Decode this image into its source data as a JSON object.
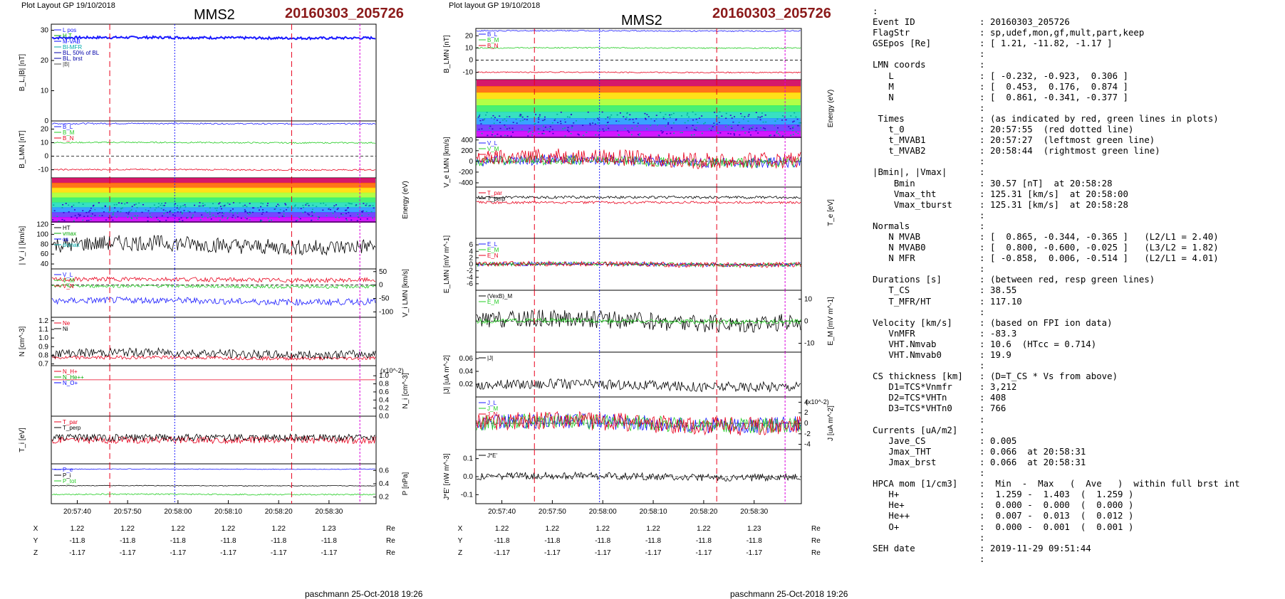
{
  "header": {
    "left_layout": "Plot Layout GP 19/10/2018",
    "mid_layout": "Plot layout GP 19/10/2018",
    "spacecraft": "MMS2",
    "event": "20160303_205726"
  },
  "footer": {
    "left": "paschmann 25-Oct-2018 19:26",
    "mid": "paschmann 25-Oct-2018 19:26"
  },
  "time_ticks": [
    "20:57:40",
    "20:57:50",
    "20:58:00",
    "20:58:10",
    "20:58:20",
    "20:58:30"
  ],
  "orbit": {
    "rows": [
      {
        "label": "X",
        "values": [
          "1.22",
          "1.22",
          "1.22",
          "1.22",
          "1.22",
          "1.23"
        ],
        "unit": "Re"
      },
      {
        "label": "Y",
        "values": [
          "-11.8",
          "-11.8",
          "-11.8",
          "-11.8",
          "-11.8",
          "-11.8"
        ],
        "unit": "Re"
      },
      {
        "label": "Z",
        "values": [
          "-1.17",
          "-1.17",
          "-1.17",
          "-1.17",
          "-1.17",
          "-1.17"
        ],
        "unit": "Re"
      }
    ]
  },
  "colors": {
    "red": "#e8001c",
    "blue": "#1a1aff",
    "green": "#22cc22",
    "black": "#000000",
    "cyan": "#00cccc",
    "magenta": "#dd00dd",
    "gray": "#999999",
    "darkred": "#8b1a1a"
  },
  "chart_data": [
    {
      "id": "L1",
      "type": "line",
      "ylabel": "B_L,|B| [nT]",
      "yticks": [
        "0",
        "10",
        "20",
        "30"
      ],
      "ylim": [
        0,
        32
      ],
      "legend": [
        "L pos",
        "H T",
        "M-VAB",
        "Bl-MFR",
        "BL, 50% of BL",
        "BL, brst",
        "|B|"
      ],
      "series": [
        {
          "name": "|B|",
          "color": "blue",
          "mean": 27.5,
          "amp": 0.4
        }
      ]
    },
    {
      "id": "L2",
      "type": "line",
      "ylabel": "B_LMN [nT]",
      "yticks": [
        "-10",
        "0",
        "10",
        "20"
      ],
      "ylim": [
        -16,
        26
      ],
      "legend": [
        "B_L",
        "B_M",
        "B_N"
      ],
      "series": [
        {
          "name": "B_L",
          "color": "blue",
          "mean": 24,
          "amp": 0.5
        },
        {
          "name": "B_M",
          "color": "green",
          "mean": 10,
          "amp": 0.5
        },
        {
          "name": "B_N",
          "color": "red",
          "mean": -10,
          "amp": 0.5
        }
      ]
    },
    {
      "id": "L3",
      "type": "heatmap",
      "ylabel": "Energy (eV)",
      "yticks": [
        "10^4",
        "10^3",
        "10^2"
      ]
    },
    {
      "id": "L4",
      "type": "line",
      "ylabel": "| V_i | [km/s]",
      "yticks": [
        "40",
        "60",
        "80",
        "100",
        "120"
      ],
      "ylim": [
        30,
        125
      ],
      "legend": [
        "HT",
        "vmax",
        "cs",
        "dvmax"
      ],
      "series": [
        {
          "name": "|Vi|",
          "color": "black",
          "mean": 78,
          "amp": 16
        }
      ]
    },
    {
      "id": "L5",
      "type": "line",
      "ylabel": "V_i LMN [km/s]",
      "yticks": [
        "-100",
        "-50",
        "0",
        "50"
      ],
      "ylim": [
        -120,
        60
      ],
      "legend": [
        "V_L",
        "V_M",
        "V_N"
      ],
      "series": [
        {
          "name": "V_L",
          "color": "blue",
          "mean": -60,
          "amp": 12
        },
        {
          "name": "V_M",
          "color": "green",
          "mean": -5,
          "amp": 6
        },
        {
          "name": "V_N",
          "color": "red",
          "mean": 20,
          "amp": 8
        }
      ]
    },
    {
      "id": "L6",
      "type": "line",
      "ylabel": "N [cm^-3]",
      "yticks": [
        "0.7",
        "0.8",
        "0.9",
        "1.0",
        "1.1",
        "1.2"
      ],
      "ylim": [
        0.68,
        1.24
      ],
      "legend": [
        "Ne",
        "Ni"
      ],
      "series": [
        {
          "name": "Ne",
          "color": "red",
          "mean": 0.77,
          "amp": 0.02
        },
        {
          "name": "Ni",
          "color": "black",
          "mean": 0.82,
          "amp": 0.05
        }
      ]
    },
    {
      "id": "L7",
      "type": "line",
      "ylabel": "N_i [cm^-3]",
      "yticks": [
        "0.0",
        "0.2",
        "0.4",
        "0.6",
        "0.8",
        "1.0"
      ],
      "ylim": [
        0,
        1.25
      ],
      "scale_note": "(x10^-2)",
      "legend": [
        "N_H+",
        "N_He++",
        "N_O+"
      ],
      "series": [
        {
          "name": "N_He++",
          "color": "red",
          "mean": 0.9,
          "amp": 0
        }
      ]
    },
    {
      "id": "L8",
      "type": "line",
      "ylabel": "T_i [eV]",
      "yticks": [],
      "legend": [
        "T_par",
        "T_perp"
      ],
      "series": [
        {
          "name": "T_par",
          "color": "red",
          "mean": 0.5,
          "amp": 0.15
        },
        {
          "name": "T_perp",
          "color": "black",
          "mean": 0.55,
          "amp": 0.15
        }
      ]
    },
    {
      "id": "L9",
      "type": "line",
      "ylabel": "P [nPa]",
      "yticks": [
        "0.2",
        "0.4",
        "0.6"
      ],
      "ylim": [
        0.1,
        0.7
      ],
      "legend": [
        "P_e",
        "P_i",
        "P_tot"
      ],
      "series": [
        {
          "name": "P_B",
          "color": "blue",
          "mean": 0.62,
          "amp": 0.005
        },
        {
          "name": "P_i",
          "color": "black",
          "mean": 0.37,
          "amp": 0.005
        },
        {
          "name": "P_th",
          "color": "green",
          "mean": 0.24,
          "amp": 0.01
        }
      ]
    },
    {
      "id": "M1",
      "type": "line",
      "ylabel": "B_LMN [nT]",
      "yticks": [
        "-10",
        "0",
        "10",
        "20"
      ],
      "ylim": [
        -16,
        26
      ],
      "legend": [
        "B_L",
        "B_M",
        "B_N"
      ],
      "series": [
        {
          "name": "B_L",
          "color": "blue",
          "mean": 24,
          "amp": 0.5
        },
        {
          "name": "B_M",
          "color": "green",
          "mean": 10,
          "amp": 0.5
        },
        {
          "name": "B_N",
          "color": "red",
          "mean": -10,
          "amp": 0.5
        }
      ]
    },
    {
      "id": "M2",
      "type": "heatmap",
      "ylabel": "Energy (eV)",
      "yticks": [
        "10^4",
        "10^3",
        "10^2",
        "10^1"
      ]
    },
    {
      "id": "M3",
      "type": "line",
      "ylabel": "V_e LMN [km/s]",
      "yticks": [
        "-400",
        "-200",
        "0",
        "200",
        "400"
      ],
      "ylim": [
        -480,
        450
      ],
      "legend": [
        "V_L",
        "V_M",
        "V_N"
      ],
      "series": [
        {
          "name": "V_L",
          "color": "blue",
          "mean": 0,
          "amp": 100
        },
        {
          "name": "V_M",
          "color": "green",
          "mean": 0,
          "amp": 90
        },
        {
          "name": "V_N",
          "color": "red",
          "mean": 50,
          "amp": 150
        }
      ]
    },
    {
      "id": "M4",
      "type": "line",
      "ylabel": "T_e [eV]",
      "yticks": [],
      "legend": [
        "T_par",
        "T_perp"
      ],
      "series": [
        {
          "name": "T_par",
          "color": "red",
          "mean": 0.7,
          "amp": 0.05
        },
        {
          "name": "T_perp",
          "color": "black",
          "mean": 0.8,
          "amp": 0.05
        }
      ]
    },
    {
      "id": "M5",
      "type": "line",
      "ylabel": "E_LMN [mV m^-1]",
      "yticks": [
        "-6",
        "-4",
        "-2",
        "0",
        "2",
        "4",
        "6"
      ],
      "ylim": [
        -8,
        8
      ],
      "legend": [
        "E_L",
        "E_M",
        "E_N"
      ],
      "series": [
        {
          "name": "E_L",
          "color": "blue",
          "mean": 0,
          "amp": 0.6
        },
        {
          "name": "E_M",
          "color": "green",
          "mean": 0,
          "amp": 0.6
        },
        {
          "name": "E_N",
          "color": "red",
          "mean": 0,
          "amp": 0.8
        }
      ]
    },
    {
      "id": "M6",
      "type": "line",
      "ylabel": "E_M [mV m^-1]",
      "yticks": [
        "-10",
        "0",
        "10"
      ],
      "ylim": [
        -14,
        14
      ],
      "legend": [
        "(VexB)_M",
        "E_M"
      ],
      "series": [
        {
          "name": "(VexB)M",
          "color": "black",
          "mean": 0,
          "amp": 4
        },
        {
          "name": "E_M",
          "color": "green",
          "mean": 0,
          "amp": 1
        }
      ]
    },
    {
      "id": "M7",
      "type": "line",
      "ylabel": "|J| [uA m^-2]",
      "yticks": [
        "0.02",
        "0.04",
        "0.06"
      ],
      "ylim": [
        0,
        0.07
      ],
      "legend": [
        "|J|"
      ],
      "series": [
        {
          "name": "|J|",
          "color": "black",
          "mean": 0.018,
          "amp": 0.008
        }
      ]
    },
    {
      "id": "M8",
      "type": "line",
      "ylabel": "J [uA m^-2]",
      "yticks": [
        "-4",
        "-2",
        "0",
        "2",
        "4"
      ],
      "ylim": [
        -5,
        5
      ],
      "scale_note": "(x10^-2)",
      "legend": [
        "J_L",
        "J_M",
        "J_N"
      ],
      "series": [
        {
          "name": "J_L",
          "color": "blue",
          "mean": 0,
          "amp": 1.5
        },
        {
          "name": "J_M",
          "color": "green",
          "mean": 0,
          "amp": 1.5
        },
        {
          "name": "J_N",
          "color": "red",
          "mean": 0,
          "amp": 1.8
        }
      ]
    },
    {
      "id": "M9",
      "type": "line",
      "ylabel": "J*E' [nW m^-3]",
      "yticks": [
        "-0.1",
        "0.0",
        "0.1"
      ],
      "ylim": [
        -0.15,
        0.15
      ],
      "legend": [
        "J*E'"
      ],
      "series": [
        {
          "name": "J*E'",
          "color": "black",
          "mean": 0,
          "amp": 0.02
        }
      ]
    }
  ],
  "info": {
    "lines": [
      {
        "label": ":",
        "sep": "",
        "value": ""
      },
      {
        "label": "Event ID",
        "sep": ":",
        "value": "20160303_205726"
      },
      {
        "label": "FlagStr",
        "sep": ":",
        "value": "sp,udef,mon,gf,mult,part,keep"
      },
      {
        "label": "GSEpos [Re]",
        "sep": ":",
        "value": "[ 1.21, -11.82, -1.17 ]"
      },
      {
        "label": "",
        "sep": ":",
        "value": ""
      },
      {
        "label": "LMN coords",
        "sep": ":",
        "value": ""
      },
      {
        "label": "   L",
        "sep": ":",
        "value": "[ -0.232, -0.923,  0.306 ]"
      },
      {
        "label": "   M",
        "sep": ":",
        "value": "[  0.453,  0.176,  0.874 ]"
      },
      {
        "label": "   N",
        "sep": ":",
        "value": "[  0.861, -0.341, -0.377 ]"
      },
      {
        "label": "",
        "sep": ":",
        "value": ""
      },
      {
        "label": " Times",
        "sep": ":",
        "value": "(as indicated by red, green lines in plots)"
      },
      {
        "label": "   t_0",
        "sep": ":",
        "value": "20:57:55  (red dotted line)"
      },
      {
        "label": "   t_MVAB1",
        "sep": ":",
        "value": "20:57:27  (leftmost green line)"
      },
      {
        "label": "   t_MVAB2",
        "sep": ":",
        "value": "20:58:44  (rightmost green line)"
      },
      {
        "label": "",
        "sep": ":",
        "value": ""
      },
      {
        "label": "|Bmin|, |Vmax|",
        "sep": ":",
        "value": ""
      },
      {
        "label": "    Bmin",
        "sep": ":",
        "value": "30.57 [nT]  at 20:58:28"
      },
      {
        "label": "    Vmax_tht",
        "sep": ":",
        "value": "125.31 [km/s]  at 20:58:00"
      },
      {
        "label": "    Vmax_tburst",
        "sep": ":",
        "value": "125.31 [km/s]  at 20:58:28"
      },
      {
        "label": "",
        "sep": ":",
        "value": ""
      },
      {
        "label": "Normals",
        "sep": ":",
        "value": ""
      },
      {
        "label": "   N MVAB",
        "sep": ":",
        "value": "[  0.865, -0.344, -0.365 ]   (L2/L1 = 2.40)"
      },
      {
        "label": "   N MVAB0",
        "sep": ":",
        "value": "[  0.800, -0.600, -0.025 ]   (L3/L2 = 1.82)"
      },
      {
        "label": "   N MFR",
        "sep": ":",
        "value": "[ -0.858,  0.006, -0.514 ]   (L2/L1 = 4.01)"
      },
      {
        "label": "",
        "sep": ":",
        "value": ""
      },
      {
        "label": "Durations [s]",
        "sep": ":",
        "value": "(between red, resp green lines)"
      },
      {
        "label": "   T_CS",
        "sep": ":",
        "value": "38.55"
      },
      {
        "label": "   T_MFR/HT",
        "sep": ":",
        "value": "117.10"
      },
      {
        "label": "",
        "sep": ":",
        "value": ""
      },
      {
        "label": "Velocity [km/s]",
        "sep": ":",
        "value": "(based on FPI ion data)"
      },
      {
        "label": "   VnMFR",
        "sep": ":",
        "value": "-83.3"
      },
      {
        "label": "   VHT.Nmvab",
        "sep": ":",
        "value": "10.6  (HTcc = 0.714)"
      },
      {
        "label": "   VHT.Nmvab0",
        "sep": ":",
        "value": "19.9"
      },
      {
        "label": "",
        "sep": ":",
        "value": ""
      },
      {
        "label": "CS thickness [km]",
        "sep": ":",
        "value": "(D=T_CS * Vs from above)"
      },
      {
        "label": "   D1=TCS*Vnmfr",
        "sep": ":",
        "value": "3,212"
      },
      {
        "label": "   D2=TCS*VHTn",
        "sep": ":",
        "value": "408"
      },
      {
        "label": "   D3=TCS*VHTn0",
        "sep": ":",
        "value": "766"
      },
      {
        "label": "",
        "sep": ":",
        "value": ""
      },
      {
        "label": "Currents [uA/m2]",
        "sep": ":",
        "value": ""
      },
      {
        "label": "   Jave_CS",
        "sep": ":",
        "value": "0.005"
      },
      {
        "label": "   Jmax_THT",
        "sep": ":",
        "value": "0.066  at 20:58:31"
      },
      {
        "label": "   Jmax_brst",
        "sep": ":",
        "value": "0.066  at 20:58:31"
      },
      {
        "label": "",
        "sep": ":",
        "value": ""
      },
      {
        "label": "HPCA mom [1/cm3]",
        "sep": ":",
        "value": " Min  -  Max   (  Ave   )  within full brst int"
      },
      {
        "label": "   H+",
        "sep": ":",
        "value": " 1.259 -  1.403  (  1.259 )"
      },
      {
        "label": "   He+",
        "sep": ":",
        "value": " 0.000 -  0.000  (  0.000 )"
      },
      {
        "label": "   He++",
        "sep": ":",
        "value": " 0.007 -  0.013  (  0.012 )"
      },
      {
        "label": "   O+",
        "sep": ":",
        "value": " 0.000 -  0.001  (  0.001 )"
      },
      {
        "label": "",
        "sep": ":",
        "value": ""
      },
      {
        "label": "SEH date",
        "sep": ":",
        "value": "2019-11-29 09:51:44"
      },
      {
        "label": "",
        "sep": ":",
        "value": ""
      }
    ]
  }
}
